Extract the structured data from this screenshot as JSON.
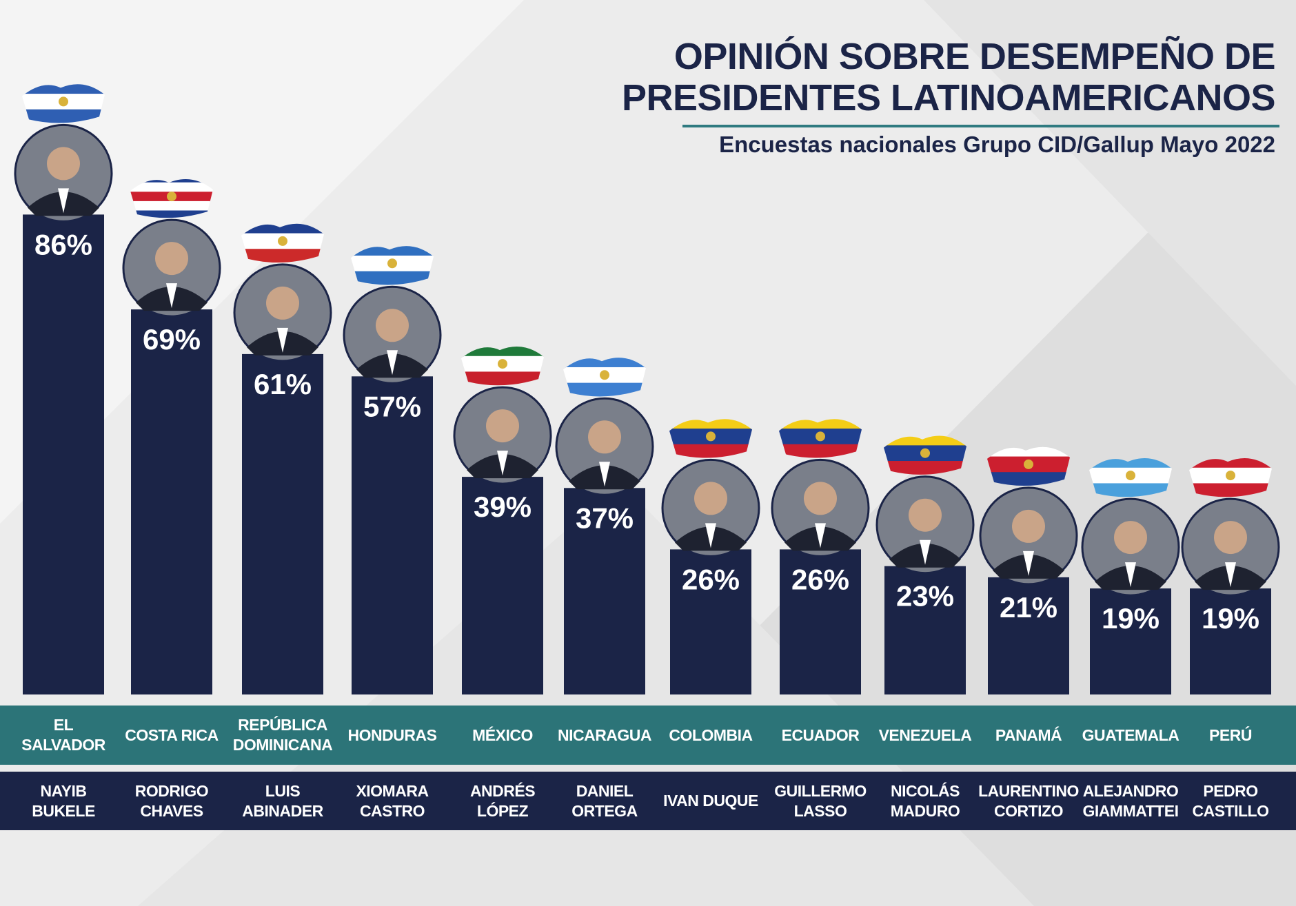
{
  "header": {
    "title": "OPINIÓN SOBRE DESEMPEÑO DE PRESIDENTES LATINOAMERICANOS",
    "subtitle": "Encuestas nacionales Grupo CID/Gallup Mayo 2022"
  },
  "colors": {
    "bar": "#1b2447",
    "teal_band": "#2c7478",
    "navy_band": "#1b2447",
    "title": "#1b2447"
  },
  "chart_data": {
    "type": "bar",
    "title": "OPINIÓN SOBRE DESEMPEÑO DE PRESIDENTES LATINOAMERICANOS",
    "subtitle": "Encuestas nacionales Grupo CID/Gallup Mayo 2022",
    "xlabel": "",
    "ylabel": "",
    "ylim": [
      0,
      100
    ],
    "grid": false,
    "categories": [
      "EL SALVADOR",
      "COSTA RICA",
      "REPÚBLICA DOMINICANA",
      "HONDURAS",
      "MÉXICO",
      "NICARAGUA",
      "COLOMBIA",
      "ECUADOR",
      "VENEZUELA",
      "PANAMÁ",
      "GUATEMALA",
      "PERÚ"
    ],
    "presidents": [
      "NAYIB BUKELE",
      "RODRIGO CHAVES",
      "LUIS ABINADER",
      "XIOMARA CASTRO",
      "ANDRÉS LÓPEZ",
      "DANIEL ORTEGA",
      "IVAN DUQUE",
      "GUILLERMO LASSO",
      "NICOLÁS MADURO",
      "LAURENTINO CORTIZO",
      "ALEJANDRO GIAMMATTEI",
      "PEDRO CASTILLO"
    ],
    "values": [
      86,
      69,
      61,
      57,
      39,
      37,
      26,
      26,
      23,
      21,
      19,
      19
    ],
    "value_labels": [
      "86%",
      "69%",
      "61%",
      "57%",
      "39%",
      "37%",
      "26%",
      "26%",
      "23%",
      "21%",
      "19%",
      "19%"
    ],
    "flag_icons": [
      "el-salvador-flag-map-icon",
      "costa-rica-flag-map-icon",
      "dominican-republic-flag-map-icon",
      "honduras-flag-map-icon",
      "mexico-flag-map-icon",
      "nicaragua-flag-map-icon",
      "colombia-flag-map-icon",
      "ecuador-flag-map-icon",
      "venezuela-flag-map-icon",
      "panama-flag-map-icon",
      "guatemala-flag-map-icon",
      "peru-flag-map-icon"
    ],
    "portraits": [
      "president-portrait",
      "president-portrait",
      "president-portrait",
      "president-portrait",
      "president-portrait",
      "president-portrait",
      "president-portrait",
      "president-portrait",
      "president-portrait",
      "president-portrait",
      "president-portrait",
      "president-portrait"
    ]
  }
}
